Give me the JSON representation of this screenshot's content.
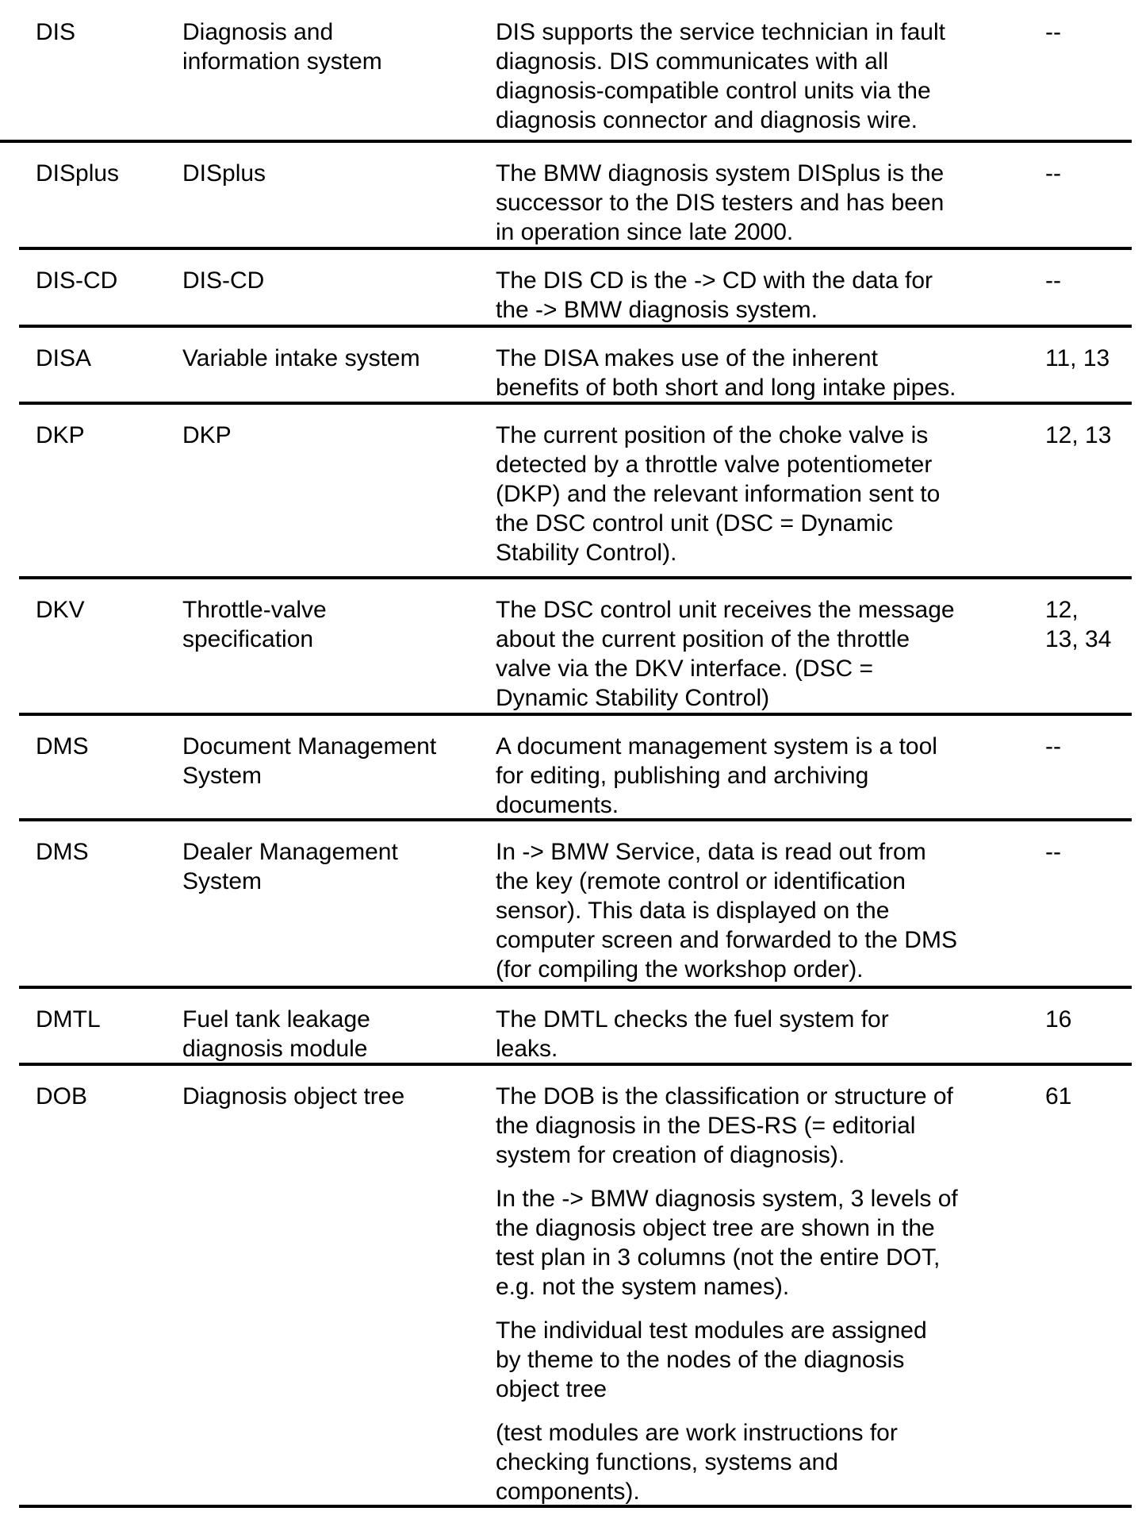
{
  "rows": [
    {
      "abbr": "DIS",
      "term": [
        "Diagnosis and",
        "information system"
      ],
      "desc": [
        [
          "DIS supports the service technician in fault",
          "diagnosis. DIS communicates with all",
          "diagnosis-compatible control units via the",
          "diagnosis connector and diagnosis wire."
        ]
      ],
      "ref": [
        "--"
      ]
    },
    {
      "abbr": "DISplus",
      "term": [
        "DISplus"
      ],
      "desc": [
        [
          "The BMW diagnosis system DISplus is the",
          "successor to the DIS testers and has been",
          "in operation since late 2000."
        ]
      ],
      "ref": [
        "--"
      ]
    },
    {
      "abbr": "DIS-CD",
      "term": [
        "DIS-CD"
      ],
      "desc": [
        [
          "The DIS CD is the -> CD with the data for",
          "the -> BMW diagnosis system."
        ]
      ],
      "ref": [
        "--"
      ]
    },
    {
      "abbr": "DISA",
      "term": [
        "Variable intake system"
      ],
      "desc": [
        [
          "The DISA makes use of the inherent",
          "benefits of both short and long intake pipes."
        ]
      ],
      "ref": [
        "11, 13"
      ]
    },
    {
      "abbr": "DKP",
      "term": [
        "DKP"
      ],
      "desc": [
        [
          "The current position of the choke valve is",
          "detected by a throttle valve potentiometer",
          "(DKP) and the relevant information sent to",
          "the DSC control unit (DSC = Dynamic",
          "Stability Control)."
        ]
      ],
      "ref": [
        "12, 13"
      ]
    },
    {
      "abbr": "DKV",
      "term": [
        "Throttle-valve",
        "specification"
      ],
      "desc": [
        [
          "The DSC control unit receives the message",
          "about the current position of the throttle",
          "valve via the DKV interface. (DSC =",
          "Dynamic Stability Control)"
        ]
      ],
      "ref": [
        "12,",
        "13, 34"
      ]
    },
    {
      "abbr": "DMS",
      "term": [
        "Document Management",
        "System"
      ],
      "desc": [
        [
          "A document management system is a tool",
          "for editing, publishing and archiving",
          "documents."
        ]
      ],
      "ref": [
        "--"
      ]
    },
    {
      "abbr": "DMS",
      "term": [
        "Dealer Management",
        "System"
      ],
      "desc": [
        [
          "In -> BMW Service, data is read out from",
          "the key (remote control or identification",
          "sensor). This data is displayed on the",
          "computer screen and forwarded to the DMS",
          "(for compiling the workshop order)."
        ]
      ],
      "ref": [
        "--"
      ]
    },
    {
      "abbr": "DMTL",
      "term": [
        "Fuel tank leakage",
        "diagnosis module"
      ],
      "desc": [
        [
          "The DMTL checks the fuel system for",
          "leaks."
        ]
      ],
      "ref": [
        "16"
      ]
    },
    {
      "abbr": "DOB",
      "term": [
        "Diagnosis object tree"
      ],
      "desc": [
        [
          "The DOB is the classification or structure of",
          "the diagnosis in the DES-RS (= editorial",
          "system for creation of diagnosis)."
        ],
        [
          "In the -> BMW diagnosis system, 3 levels of",
          "the diagnosis object tree are shown in the",
          "test plan in 3 columns (not the entire DOT,",
          "e.g. not the system names)."
        ],
        [
          "The individual test modules are assigned",
          "by theme to the nodes of the diagnosis",
          "object tree"
        ],
        [
          "(test modules are work instructions for",
          "checking functions, systems and",
          "components)."
        ]
      ],
      "ref": [
        "61"
      ]
    }
  ]
}
